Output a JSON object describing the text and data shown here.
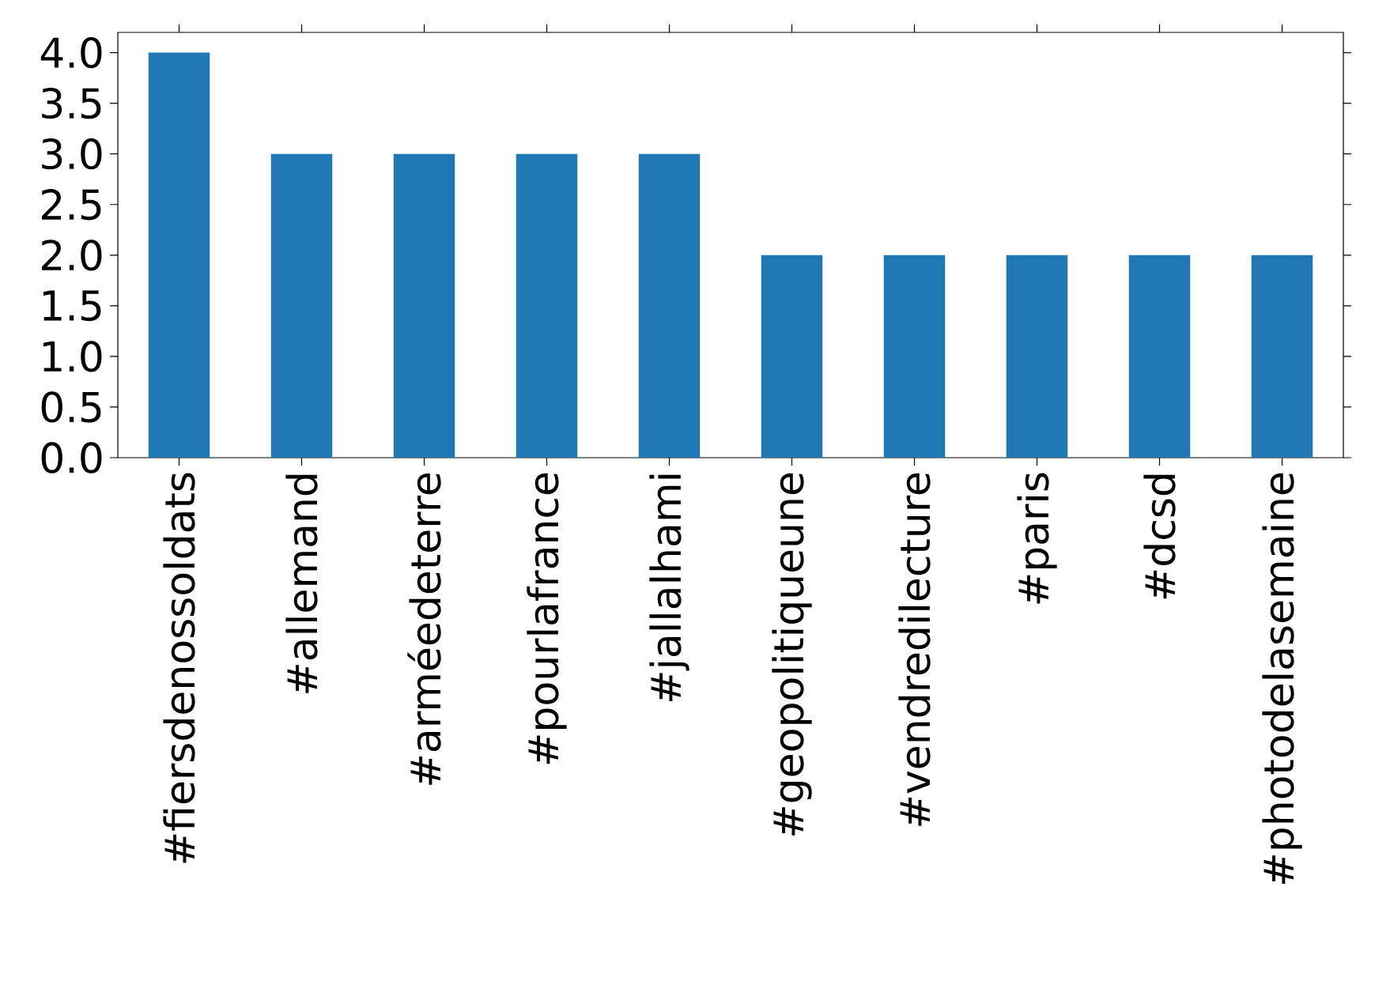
{
  "chart_data": {
    "type": "bar",
    "categories": [
      "#fiersdenossoldats",
      "#allemand",
      "#arméedeterre",
      "#pourlafrance",
      "#jallalhami",
      "#geopolitiqueune",
      "#vendredilecture",
      "#paris",
      "#dcsd",
      "#photodelasemaine"
    ],
    "values": [
      4,
      3,
      3,
      3,
      3,
      2,
      2,
      2,
      2,
      2
    ],
    "color": "#1f77b4",
    "ylim": [
      0,
      4.2
    ],
    "yticks": [
      {
        "value": 0,
        "label": "0.0"
      },
      {
        "value": 0.5,
        "label": "0.5"
      },
      {
        "value": 1,
        "label": "1.0"
      },
      {
        "value": 1.5,
        "label": "1.5"
      },
      {
        "value": 2,
        "label": "2.0"
      },
      {
        "value": 2.5,
        "label": "2.5"
      },
      {
        "value": 3,
        "label": "3.0"
      },
      {
        "value": 3.5,
        "label": "3.5"
      },
      {
        "value": 4,
        "label": "4.0"
      }
    ]
  }
}
